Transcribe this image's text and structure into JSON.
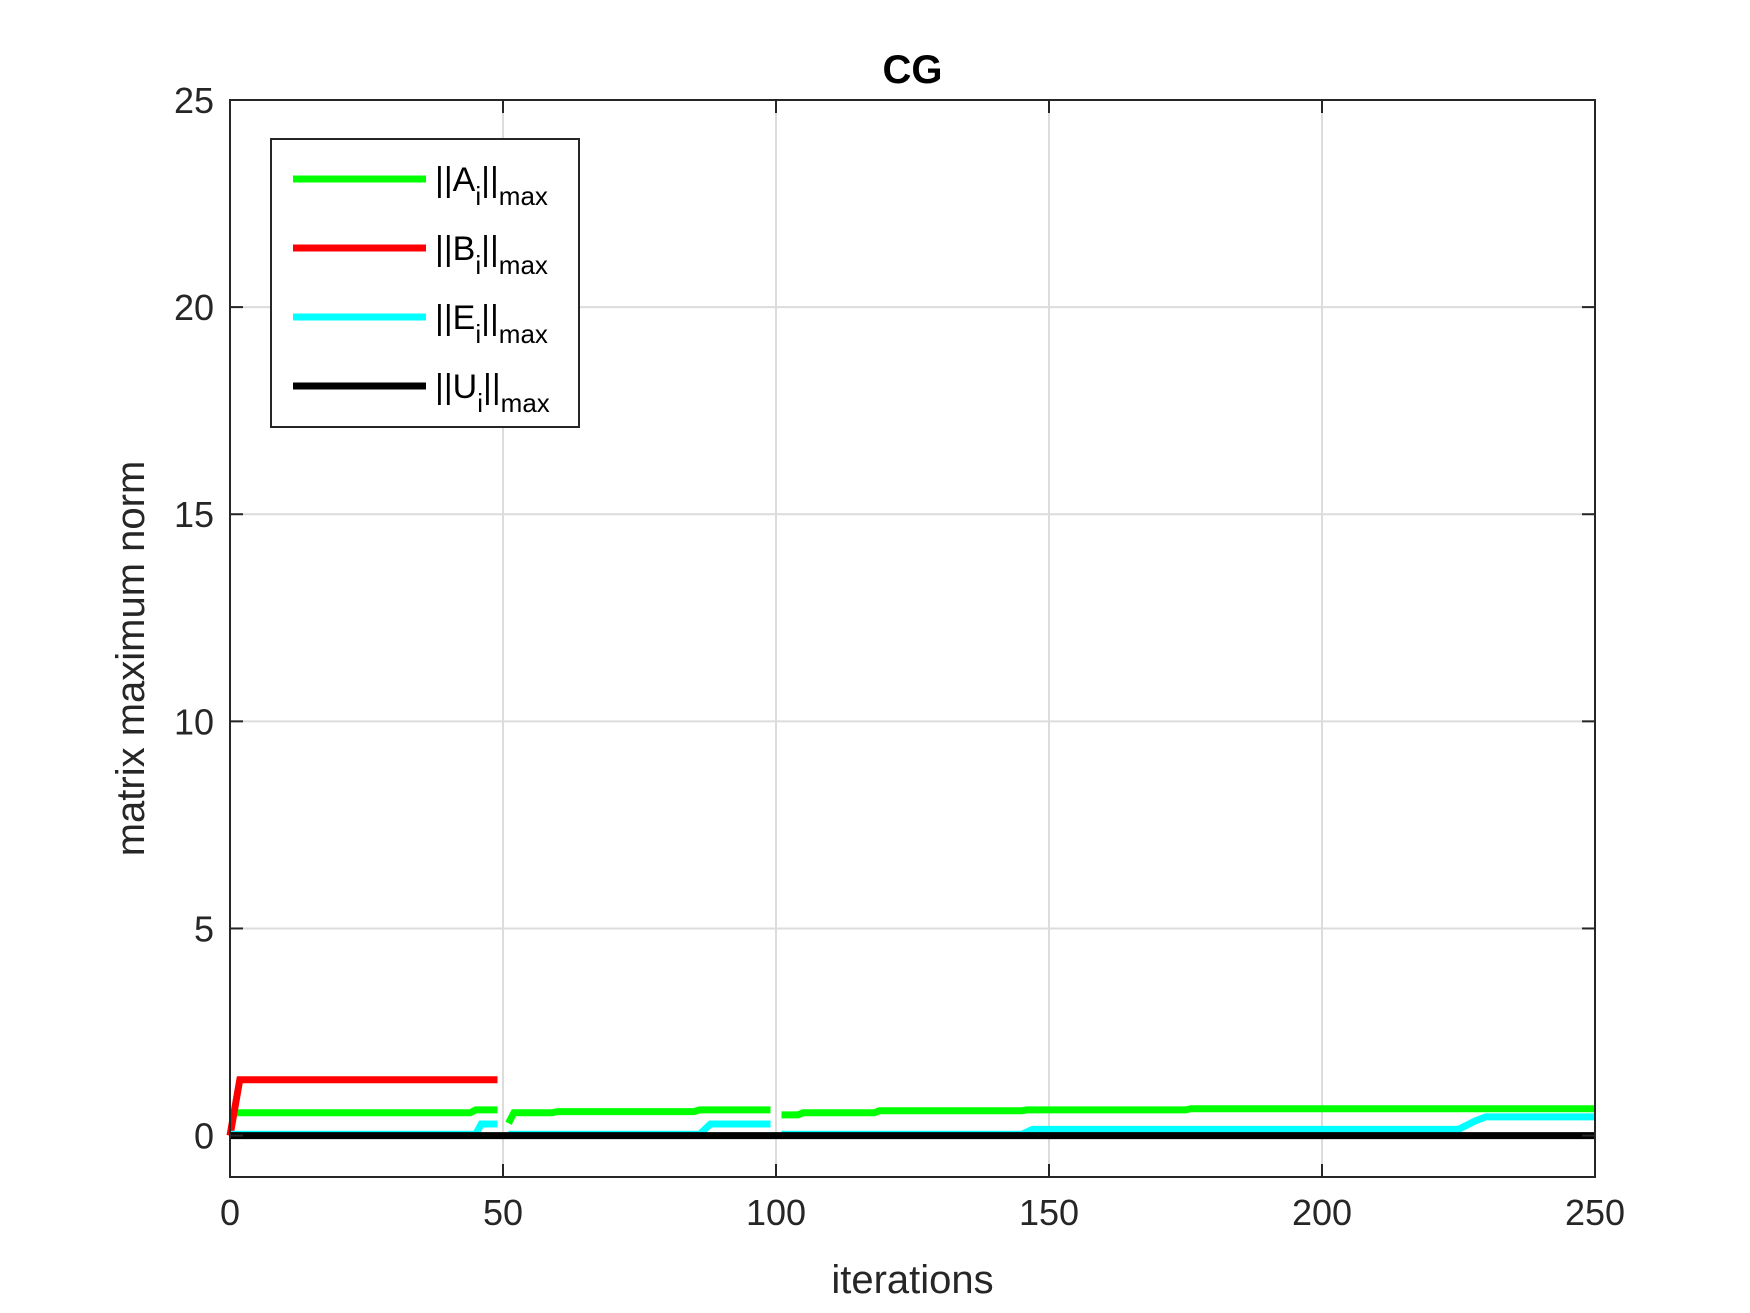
{
  "chart_data": {
    "type": "line",
    "title": "CG",
    "xlabel": "iterations",
    "ylabel": "matrix maximum norm",
    "xlim": [
      0,
      250
    ],
    "ylim": [
      -1,
      25
    ],
    "xticks": [
      0,
      50,
      100,
      150,
      200,
      250
    ],
    "yticks": [
      0,
      5,
      10,
      15,
      20,
      25
    ],
    "grid": true,
    "legend_position": "top-left",
    "series": [
      {
        "name": "||A_i||_max",
        "label_main": "||A",
        "label_sub": "i",
        "label_tail": "||",
        "label_tail_sub": "max",
        "color": "#00ff00",
        "segments": [
          [
            [
              0,
              0.55
            ],
            [
              44,
              0.55
            ],
            [
              45,
              0.62
            ],
            [
              49,
              0.62
            ]
          ],
          [
            [
              51,
              0.3
            ],
            [
              52,
              0.55
            ],
            [
              59,
              0.55
            ],
            [
              60,
              0.58
            ],
            [
              85,
              0.58
            ],
            [
              86,
              0.62
            ],
            [
              99,
              0.62
            ]
          ],
          [
            [
              101,
              0.5
            ],
            [
              104,
              0.5
            ],
            [
              105,
              0.55
            ],
            [
              118,
              0.55
            ],
            [
              119,
              0.6
            ],
            [
              145,
              0.6
            ],
            [
              146,
              0.62
            ],
            [
              175,
              0.62
            ],
            [
              176,
              0.65
            ],
            [
              250,
              0.65
            ]
          ]
        ]
      },
      {
        "name": "||B_i||_max",
        "label_main": "||B",
        "label_sub": "i",
        "label_tail": "||",
        "label_tail_sub": "max",
        "color": "#ff0000",
        "segments": [
          [
            [
              0,
              0
            ],
            [
              1.8,
              1.35
            ],
            [
              49,
              1.35
            ]
          ]
        ]
      },
      {
        "name": "||E_i||_max",
        "label_main": "||E",
        "label_sub": "i",
        "label_tail": "||",
        "label_tail_sub": "max",
        "color": "#00ffff",
        "segments": [
          [
            [
              0,
              0.03
            ],
            [
              45,
              0.03
            ],
            [
              46,
              0.28
            ],
            [
              49,
              0.28
            ]
          ],
          [
            [
              51,
              0.03
            ],
            [
              86,
              0.03
            ],
            [
              88,
              0.28
            ],
            [
              99,
              0.28
            ]
          ],
          [
            [
              101,
              0.03
            ],
            [
              145,
              0.03
            ],
            [
              147,
              0.15
            ],
            [
              225,
              0.15
            ],
            [
              228,
              0.35
            ],
            [
              230,
              0.45
            ],
            [
              250,
              0.45
            ]
          ]
        ]
      },
      {
        "name": "||U_i||_max",
        "label_main": "||U",
        "label_sub": "i",
        "label_tail": "||",
        "label_tail_sub": "max",
        "color": "#000000",
        "segments": [
          [
            [
              0,
              0
            ],
            [
              250,
              0
            ]
          ]
        ]
      }
    ]
  }
}
